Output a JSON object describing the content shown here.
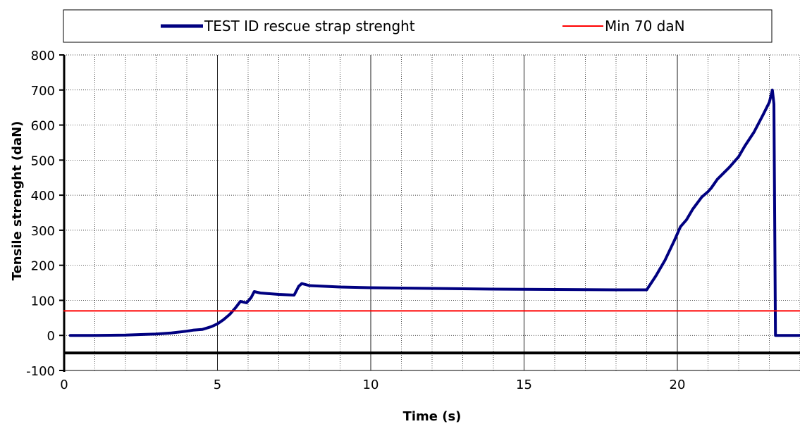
{
  "chart_data": {
    "type": "line",
    "title": "",
    "xlabel": "Time (s)",
    "ylabel": "Tensile strenght  (daN)",
    "xlim": [
      0,
      24
    ],
    "ylim": [
      -100,
      800
    ],
    "x_ticks": [
      0,
      5,
      10,
      15,
      20
    ],
    "x_minor_step": 1,
    "y_ticks": [
      -100,
      0,
      100,
      200,
      300,
      400,
      500,
      600,
      700,
      800
    ],
    "grid": true,
    "legend_position": "top",
    "baseline_y": -50,
    "series": [
      {
        "name": "TEST ID rescue strap strenght",
        "color": "#000080",
        "points": [
          [
            0.2,
            0
          ],
          [
            1.0,
            0
          ],
          [
            2.0,
            1
          ],
          [
            3.0,
            4
          ],
          [
            3.5,
            7
          ],
          [
            4.0,
            12
          ],
          [
            4.2,
            15
          ],
          [
            4.5,
            17
          ],
          [
            4.8,
            25
          ],
          [
            5.0,
            33
          ],
          [
            5.2,
            45
          ],
          [
            5.4,
            60
          ],
          [
            5.6,
            80
          ],
          [
            5.75,
            97
          ],
          [
            5.95,
            93
          ],
          [
            6.1,
            108
          ],
          [
            6.2,
            125
          ],
          [
            6.4,
            121
          ],
          [
            7.0,
            117
          ],
          [
            7.5,
            115
          ],
          [
            7.65,
            140
          ],
          [
            7.75,
            148
          ],
          [
            8.0,
            142
          ],
          [
            9.0,
            138
          ],
          [
            10.0,
            136
          ],
          [
            12.0,
            134
          ],
          [
            14.0,
            132
          ],
          [
            16.0,
            131
          ],
          [
            18.0,
            130
          ],
          [
            19.0,
            130
          ],
          [
            19.3,
            170
          ],
          [
            19.6,
            215
          ],
          [
            19.9,
            270
          ],
          [
            20.1,
            310
          ],
          [
            20.3,
            330
          ],
          [
            20.5,
            360
          ],
          [
            20.8,
            395
          ],
          [
            21.0,
            410
          ],
          [
            21.1,
            420
          ],
          [
            21.3,
            445
          ],
          [
            21.7,
            480
          ],
          [
            22.0,
            510
          ],
          [
            22.2,
            540
          ],
          [
            22.5,
            580
          ],
          [
            22.8,
            630
          ],
          [
            23.0,
            665
          ],
          [
            23.1,
            700
          ],
          [
            23.15,
            660
          ],
          [
            23.2,
            0
          ],
          [
            24.0,
            0
          ]
        ]
      },
      {
        "name": "Min 70 daN",
        "color": "#ff0000",
        "points": [
          [
            0,
            70
          ],
          [
            24,
            70
          ]
        ]
      }
    ]
  }
}
